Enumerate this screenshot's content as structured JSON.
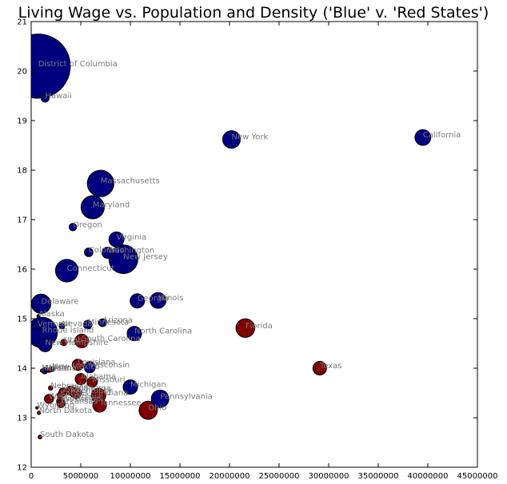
{
  "chart_data": {
    "type": "scatter",
    "title": "Living Wage vs. Population and Density ('Blue' v. 'Red States')",
    "xlabel": "",
    "ylabel": "",
    "xlim": [
      0,
      45000000
    ],
    "ylim": [
      12,
      21
    ],
    "xticks": [
      0,
      5000000,
      10000000,
      15000000,
      20000000,
      25000000,
      30000000,
      35000000,
      40000000,
      45000000
    ],
    "yticks": [
      12,
      13,
      14,
      15,
      16,
      17,
      18,
      19,
      20,
      21
    ],
    "grid": false,
    "colors": {
      "blue": "#00007f",
      "red": "#7f0000"
    },
    "points": [
      {
        "state": "District of Columbia",
        "pop": 700000,
        "wage": 20.1,
        "party": "blue",
        "size": 20
      },
      {
        "state": "Hawaii",
        "pop": 1400000,
        "wage": 19.45,
        "party": "blue",
        "size": 0.3
      },
      {
        "state": "New York",
        "pop": 20200000,
        "wage": 18.62,
        "party": "blue",
        "size": 1.5
      },
      {
        "state": "California",
        "pop": 39500000,
        "wage": 18.66,
        "party": "blue",
        "size": 1.2
      },
      {
        "state": "Massachusetts",
        "pop": 7000000,
        "wage": 17.73,
        "party": "blue",
        "size": 3.4
      },
      {
        "state": "Maryland",
        "pop": 6200000,
        "wage": 17.25,
        "party": "blue",
        "size": 2.6
      },
      {
        "state": "Oregon",
        "pop": 4200000,
        "wage": 16.85,
        "party": "blue",
        "size": 0.27
      },
      {
        "state": "Virginia",
        "pop": 8600000,
        "wage": 16.6,
        "party": "blue",
        "size": 1.1
      },
      {
        "state": "Colorado",
        "pop": 5800000,
        "wage": 16.34,
        "party": "blue",
        "size": 0.36
      },
      {
        "state": "Washington",
        "pop": 7700000,
        "wage": 16.33,
        "party": "blue",
        "size": 0.6
      },
      {
        "state": "New Jersey",
        "pop": 9300000,
        "wage": 16.2,
        "party": "blue",
        "size": 4.0
      },
      {
        "state": "Connecticut",
        "pop": 3600000,
        "wage": 15.97,
        "party": "blue",
        "size": 2.5
      },
      {
        "state": "Delaware",
        "pop": 1000000,
        "wage": 15.3,
        "party": "blue",
        "size": 1.8
      },
      {
        "state": "Georgia",
        "pop": 10700000,
        "wage": 15.36,
        "party": "blue",
        "size": 1.0
      },
      {
        "state": "Illinois",
        "pop": 12800000,
        "wage": 15.37,
        "party": "blue",
        "size": 1.2
      },
      {
        "state": "Alaska",
        "pop": 730000,
        "wage": 15.05,
        "party": "blue",
        "size": 0.05
      },
      {
        "state": "Arizona",
        "pop": 7200000,
        "wage": 14.92,
        "party": "blue",
        "size": 0.3
      },
      {
        "state": "Minnesota",
        "pop": 5700000,
        "wage": 14.88,
        "party": "blue",
        "size": 0.36
      },
      {
        "state": "Vermont",
        "pop": 640000,
        "wage": 14.85,
        "party": "blue",
        "size": 0.3
      },
      {
        "state": "Nevada",
        "pop": 3100000,
        "wage": 14.85,
        "party": "blue",
        "size": 0.15
      },
      {
        "state": "Rhode Island",
        "pop": 1100000,
        "wage": 14.72,
        "party": "blue",
        "size": 4.5
      },
      {
        "state": "Florida",
        "pop": 21600000,
        "wage": 14.81,
        "party": "red",
        "size": 1.7
      },
      {
        "state": "North Carolina",
        "pop": 10400000,
        "wage": 14.7,
        "party": "blue",
        "size": 1.0
      },
      {
        "state": "South Carolina",
        "pop": 5100000,
        "wage": 14.55,
        "party": "red",
        "size": 0.9
      },
      {
        "state": "Utah",
        "pop": 3300000,
        "wage": 14.52,
        "party": "red",
        "size": 0.2
      },
      {
        "state": "New Hampshire",
        "pop": 1400000,
        "wage": 14.47,
        "party": "blue",
        "size": 0.9
      },
      {
        "state": "Texas",
        "pop": 29100000,
        "wage": 14.0,
        "party": "red",
        "size": 0.9
      },
      {
        "state": "Louisiana",
        "pop": 4700000,
        "wage": 14.07,
        "party": "red",
        "size": 0.6
      },
      {
        "state": "Wisconsin",
        "pop": 5900000,
        "wage": 14.02,
        "party": "blue",
        "size": 0.6
      },
      {
        "state": "New Mexico",
        "pop": 2100000,
        "wage": 13.98,
        "party": "blue",
        "size": 0.12
      },
      {
        "state": "Maine",
        "pop": 1360000,
        "wage": 13.95,
        "party": "blue",
        "size": 0.2
      },
      {
        "state": "Idaho",
        "pop": 1800000,
        "wage": 13.96,
        "party": "red",
        "size": 0.1
      },
      {
        "state": "Montana",
        "pop": 1080000,
        "wage": 13.95,
        "party": "red",
        "size": 0.05
      },
      {
        "state": "Alabama",
        "pop": 5000000,
        "wage": 13.78,
        "party": "red",
        "size": 0.6
      },
      {
        "state": "Missouri",
        "pop": 6150000,
        "wage": 13.72,
        "party": "red",
        "size": 0.5
      },
      {
        "state": "Nebraska",
        "pop": 1960000,
        "wage": 13.6,
        "party": "red",
        "size": 0.1
      },
      {
        "state": "Michigan",
        "pop": 10000000,
        "wage": 13.62,
        "party": "blue",
        "size": 1.0
      },
      {
        "state": "Oklahoma",
        "pop": 3950000,
        "wage": 13.55,
        "party": "red",
        "size": 0.4
      },
      {
        "state": "Iowa",
        "pop": 3190000,
        "wage": 13.52,
        "party": "red",
        "size": 0.3
      },
      {
        "state": "Kentucky",
        "pop": 4500000,
        "wage": 13.5,
        "party": "red",
        "size": 0.6
      },
      {
        "state": "Kansas",
        "pop": 2930000,
        "wage": 13.45,
        "party": "red",
        "size": 0.2
      },
      {
        "state": "Indiana",
        "pop": 6800000,
        "wage": 13.45,
        "party": "red",
        "size": 1.0
      },
      {
        "state": "West Virginia",
        "pop": 1790000,
        "wage": 13.38,
        "party": "red",
        "size": 0.4
      },
      {
        "state": "Mississippi",
        "pop": 2960000,
        "wage": 13.33,
        "party": "red",
        "size": 0.3
      },
      {
        "state": "Pennsylvania",
        "pop": 13000000,
        "wage": 13.38,
        "party": "blue",
        "size": 1.5
      },
      {
        "state": "Arkansas",
        "pop": 3000000,
        "wage": 13.28,
        "party": "red",
        "size": 0.3
      },
      {
        "state": "Tennessee",
        "pop": 6900000,
        "wage": 13.25,
        "party": "red",
        "size": 0.9
      },
      {
        "state": "Wyoming",
        "pop": 580000,
        "wage": 13.2,
        "party": "red",
        "size": 0.03
      },
      {
        "state": "Ohio",
        "pop": 11800000,
        "wage": 13.15,
        "party": "red",
        "size": 1.6
      },
      {
        "state": "North Dakota",
        "pop": 780000,
        "wage": 13.1,
        "party": "red",
        "size": 0.06
      },
      {
        "state": "South Dakota",
        "pop": 890000,
        "wage": 12.61,
        "party": "red",
        "size": 0.07
      }
    ],
    "labels": [
      {
        "text": "District of Columbia",
        "x": 700000,
        "y": 20.1
      },
      {
        "text": "Hawaii",
        "x": 1400000,
        "y": 19.45
      },
      {
        "text": "New York",
        "x": 20200000,
        "y": 18.62
      },
      {
        "text": "California",
        "x": 39500000,
        "y": 18.66
      },
      {
        "text": "Massachusetts",
        "x": 7000000,
        "y": 17.73
      },
      {
        "text": "Maryland",
        "x": 6200000,
        "y": 17.25
      },
      {
        "text": "Oregon",
        "x": 4200000,
        "y": 16.85
      },
      {
        "text": "Virginia",
        "x": 8600000,
        "y": 16.6
      },
      {
        "text": "Colorado",
        "x": 5800000,
        "y": 16.34
      },
      {
        "text": "Washington",
        "x": 7700000,
        "y": 16.33
      },
      {
        "text": "New Jersey",
        "x": 9300000,
        "y": 16.2
      },
      {
        "text": "Connecticut",
        "x": 3600000,
        "y": 15.97
      },
      {
        "text": "Delaware",
        "x": 1000000,
        "y": 15.3
      },
      {
        "text": "Georgia",
        "x": 10700000,
        "y": 15.36
      },
      {
        "text": "Illinois",
        "x": 12800000,
        "y": 15.37
      },
      {
        "text": "Alaska",
        "x": 730000,
        "y": 15.05
      },
      {
        "text": "Arizona",
        "x": 7200000,
        "y": 14.92
      },
      {
        "text": "Minnesota",
        "x": 5700000,
        "y": 14.88
      },
      {
        "text": "Vermont",
        "x": 640000,
        "y": 14.85
      },
      {
        "text": "Nevada",
        "x": 3100000,
        "y": 14.85
      },
      {
        "text": "Rhode Island",
        "x": 1100000,
        "y": 14.72
      },
      {
        "text": "Florida",
        "x": 21600000,
        "y": 14.81
      },
      {
        "text": "North Carolina",
        "x": 10400000,
        "y": 14.7
      },
      {
        "text": "South Carolina",
        "x": 5100000,
        "y": 14.55
      },
      {
        "text": "Utah",
        "x": 3300000,
        "y": 14.52
      },
      {
        "text": "New Hampshire",
        "x": 1400000,
        "y": 14.47
      },
      {
        "text": "Texas",
        "x": 29100000,
        "y": 14.0
      },
      {
        "text": "Louisiana",
        "x": 4700000,
        "y": 14.07
      },
      {
        "text": "Wisconsin",
        "x": 5900000,
        "y": 14.02
      },
      {
        "text": "New Mexico",
        "x": 2100000,
        "y": 13.98
      },
      {
        "text": "Maine",
        "x": 1360000,
        "y": 13.95
      },
      {
        "text": "Idaho",
        "x": 1800000,
        "y": 13.96
      },
      {
        "text": "Montana",
        "x": 1080000,
        "y": 13.95
      },
      {
        "text": "Alabama",
        "x": 5000000,
        "y": 13.78
      },
      {
        "text": "Missouri",
        "x": 6150000,
        "y": 13.72
      },
      {
        "text": "Nebraska",
        "x": 1960000,
        "y": 13.6
      },
      {
        "text": "Michigan",
        "x": 10000000,
        "y": 13.62
      },
      {
        "text": "Oklahoma",
        "x": 3950000,
        "y": 13.55
      },
      {
        "text": "Iowa",
        "x": 3190000,
        "y": 13.52
      },
      {
        "text": "Kentucky",
        "x": 4500000,
        "y": 13.5
      },
      {
        "text": "Kansas",
        "x": 2930000,
        "y": 13.45
      },
      {
        "text": "Indiana",
        "x": 6800000,
        "y": 13.45
      },
      {
        "text": "West Virginia",
        "x": 1790000,
        "y": 13.38
      },
      {
        "text": "Mississippi",
        "x": 2960000,
        "y": 13.33
      },
      {
        "text": "Pennsylvania",
        "x": 13000000,
        "y": 13.38
      },
      {
        "text": "Arkansas",
        "x": 3000000,
        "y": 13.28
      },
      {
        "text": "Tennessee",
        "x": 6900000,
        "y": 13.25
      },
      {
        "text": "Wyoming",
        "x": 580000,
        "y": 13.2
      },
      {
        "text": "Ohio",
        "x": 11800000,
        "y": 13.15
      },
      {
        "text": "North Dakota",
        "x": 780000,
        "y": 13.1
      },
      {
        "text": "South Dakota",
        "x": 890000,
        "y": 12.61
      }
    ]
  }
}
